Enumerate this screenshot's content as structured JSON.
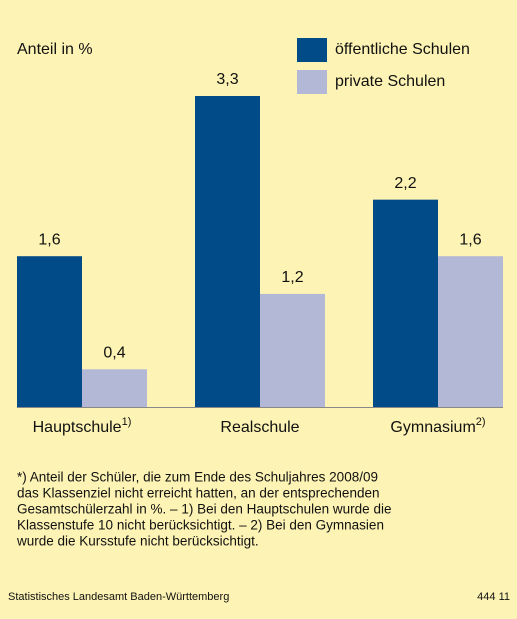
{
  "chart_data": {
    "type": "bar",
    "y_label": "Anteil in %",
    "categories": [
      "Hauptschule",
      "Realschule",
      "Gymnasium"
    ],
    "category_notes": [
      "1)",
      null,
      "2)"
    ],
    "series": [
      {
        "name": "öffentliche Schulen",
        "color": "#004b88",
        "values": [
          1.6,
          3.3,
          2.2
        ],
        "value_labels": [
          "1,6",
          "3,3",
          "2,2"
        ]
      },
      {
        "name": "private Schulen",
        "color": "#b4b8d7",
        "values": [
          0.4,
          1.2,
          1.6
        ],
        "value_labels": [
          "0,4",
          "1,2",
          "1,6"
        ]
      }
    ],
    "footnote": [
      "*) Anteil der Schüler, die zum Ende des Schuljahres 2008/09",
      "das Klassenziel nicht erreicht hatten, an der entsprechenden",
      "Gesamtschülerzahl in %. – 1) Bei den Hauptschulen wurde die",
      "Klassenstufe 10 nicht berücksichtigt. – 2) Bei den Gymnasien",
      "wurde die Kursstufe nicht berücksichtigt."
    ],
    "source": "Statistisches Landesamt Baden-Württemberg",
    "code": "444 11"
  }
}
